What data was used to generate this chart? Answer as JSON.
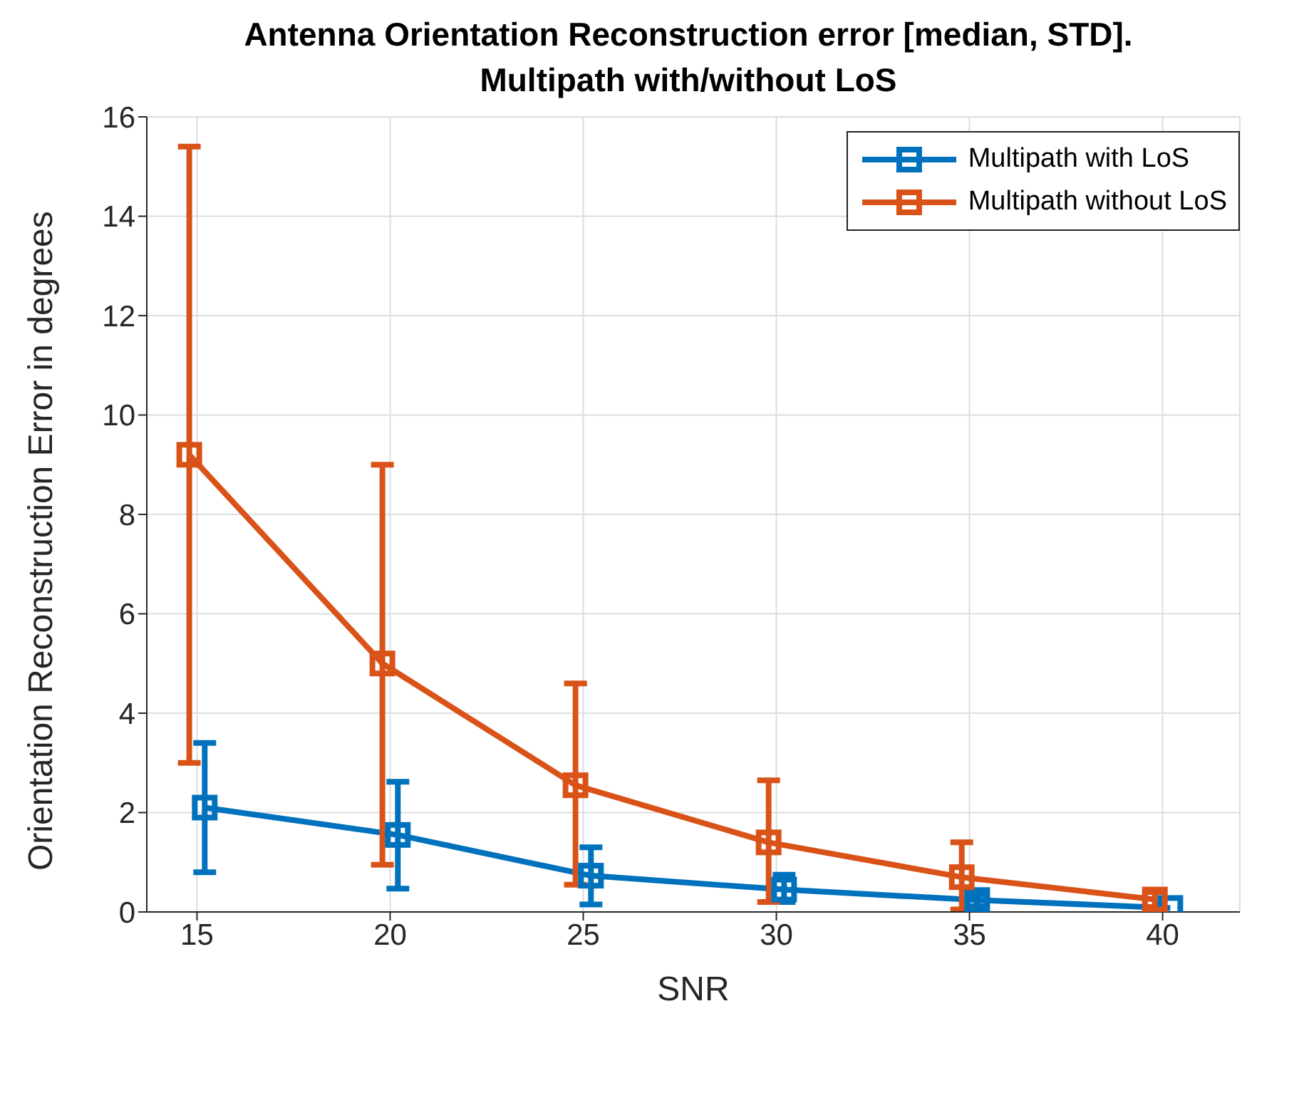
{
  "chart_data": {
    "type": "line",
    "title": "Antenna Orientation Reconstruction error [median, STD].\nMultipath with/without LoS",
    "xlabel": "SNR",
    "ylabel": "Orientation Reconstruction Error in degrees",
    "series": [
      {
        "name": "Multipath with LoS",
        "color": "#0072bd",
        "x": [
          15.2,
          20.2,
          25.2,
          30.2,
          35.2,
          40.2
        ],
        "values": [
          2.1,
          1.55,
          0.73,
          0.45,
          0.24,
          0.08
        ],
        "errors": [
          [
            0.8,
            3.4
          ],
          [
            0.47,
            2.62
          ],
          [
            0.15,
            1.3
          ],
          [
            0.2,
            0.75
          ],
          [
            0.12,
            0.35
          ],
          null
        ]
      },
      {
        "name": "Multipath without LoS",
        "color": "#d95319",
        "x": [
          14.8,
          19.8,
          24.8,
          29.8,
          34.8,
          39.8
        ],
        "values": [
          9.2,
          5.0,
          2.55,
          1.4,
          0.7,
          0.25
        ],
        "errors": [
          [
            3.0,
            15.4
          ],
          [
            0.95,
            9.0
          ],
          [
            0.55,
            4.6
          ],
          [
            0.2,
            2.65
          ],
          [
            0.05,
            1.4
          ],
          [
            0.1,
            0.4
          ]
        ]
      }
    ],
    "xlim": [
      13.7,
      42
    ],
    "xticks": [
      15,
      20,
      25,
      30,
      35,
      40
    ],
    "ylim": [
      0,
      16
    ],
    "yticks": [
      0,
      2,
      4,
      6,
      8,
      10,
      12,
      14,
      16
    ],
    "grid": true,
    "legend": "top right",
    "marker": "square",
    "line_style": "solid"
  }
}
